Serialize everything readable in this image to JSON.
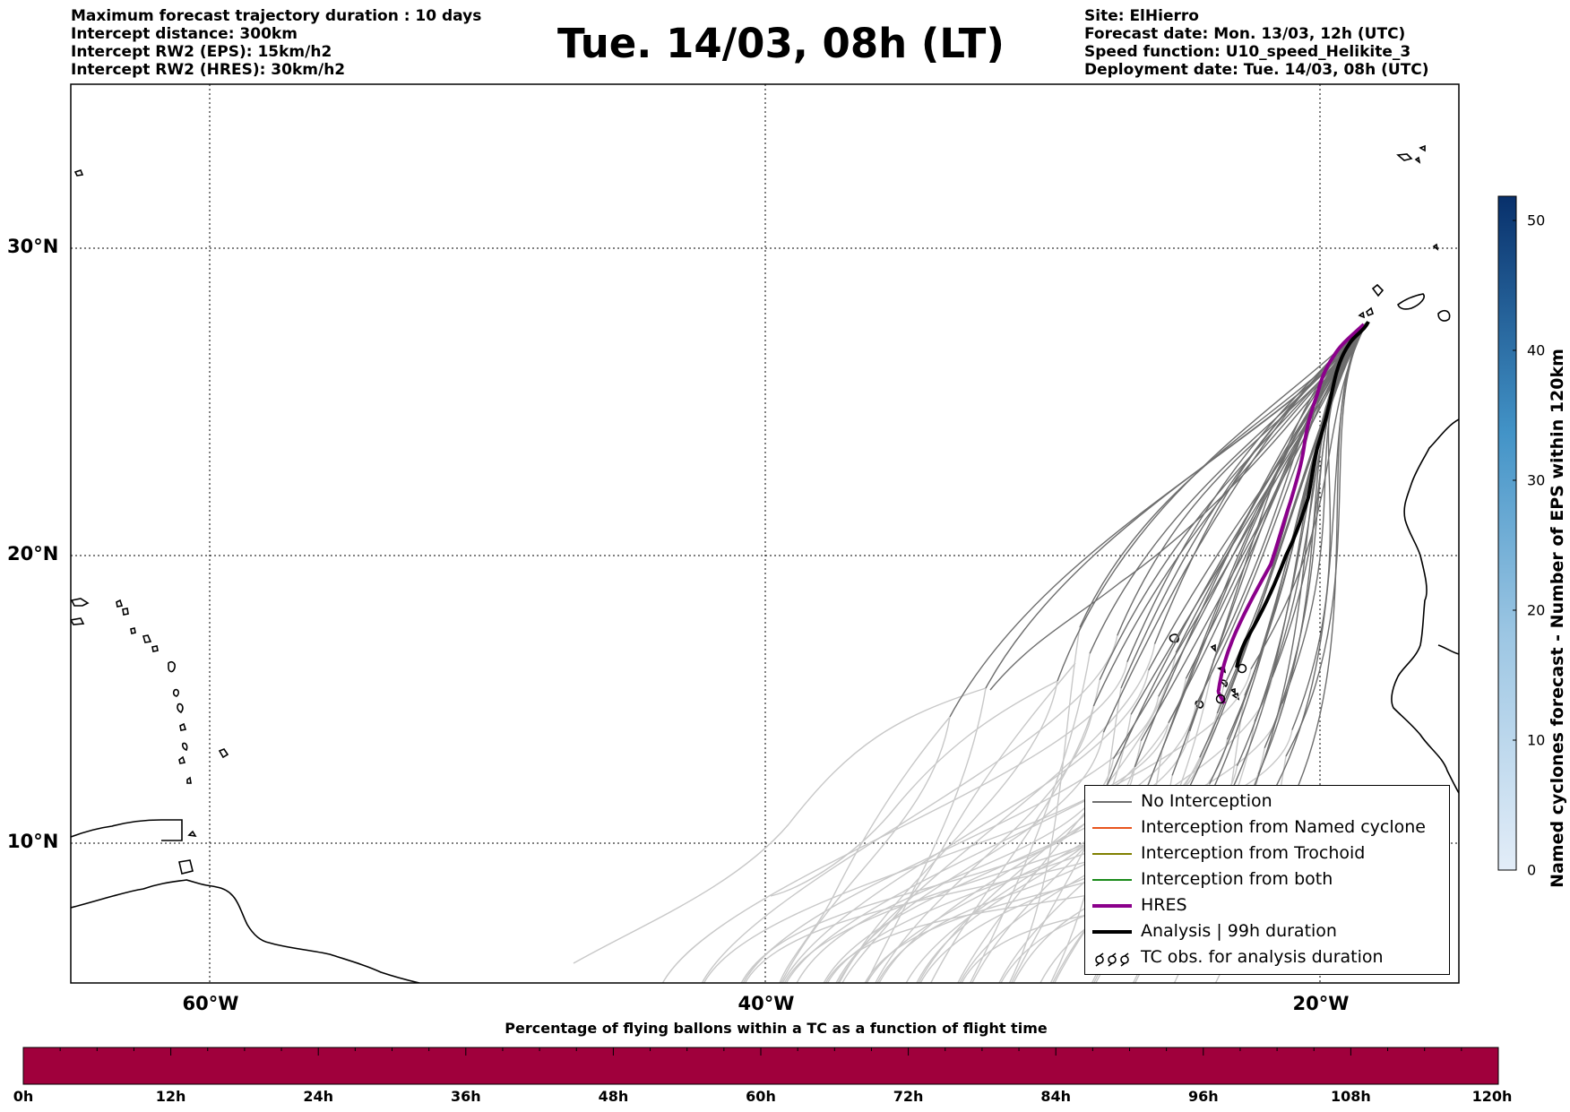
{
  "header": {
    "info_left": [
      "Maximum forecast trajectory duration : 10 days",
      "Intercept distance: 300km",
      "Intercept RW2 (EPS):  15km/h2",
      "Intercept RW2 (HRES): 30km/h2"
    ],
    "title": "Tue. 14/03, 08h (LT)",
    "info_right": [
      "Site: ElHierro",
      "Forecast date: Mon. 13/03, 12h (UTC)",
      "Speed function: U10_speed_Helikite_3",
      "Deployment date: Tue. 14/03, 08h (UTC)"
    ]
  },
  "map": {
    "lat_labels": [
      "30°N",
      "20°N",
      "10°N"
    ],
    "lon_labels": [
      "60°W",
      "40°W",
      "20°W"
    ],
    "colors": {
      "no_interception": "#6e6e6e",
      "named_cyclone": "#e8551e",
      "trochoid": "#808000",
      "both": "#1a8a1a",
      "hres": "#8b008b",
      "analysis": "#000000",
      "late_trajectory": "#c8c8c8"
    }
  },
  "legend": {
    "items": [
      {
        "label": "No Interception",
        "style": "thin",
        "color": "#6e6e6e"
      },
      {
        "label": "Interception from Named cyclone",
        "style": "thin",
        "color": "#e8551e"
      },
      {
        "label": "Interception from Trochoid",
        "style": "thin",
        "color": "#808000"
      },
      {
        "label": "Interception from both",
        "style": "thin",
        "color": "#1a8a1a"
      },
      {
        "label": "HRES",
        "style": "thick",
        "color": "#8b008b"
      },
      {
        "label": "Analysis | 99h duration",
        "style": "thick",
        "color": "#000000"
      },
      {
        "label": "TC obs. for analysis duration",
        "style": "tc-symbol",
        "color": "#000000"
      }
    ]
  },
  "colorbar": {
    "title": "Named cyclones forecast - Number of EPS within 120km",
    "ticks": [
      "0",
      "10",
      "20",
      "30",
      "40",
      "50"
    ],
    "colors": [
      "#e3edf8",
      "#08306b"
    ]
  },
  "percentage_bar": {
    "title": "Percentage of flying ballons within a TC as a function of flight time",
    "color": "#a0003c",
    "time_labels": [
      "0h",
      "12h",
      "24h",
      "36h",
      "48h",
      "60h",
      "72h",
      "84h",
      "96h",
      "108h",
      "120h"
    ]
  }
}
